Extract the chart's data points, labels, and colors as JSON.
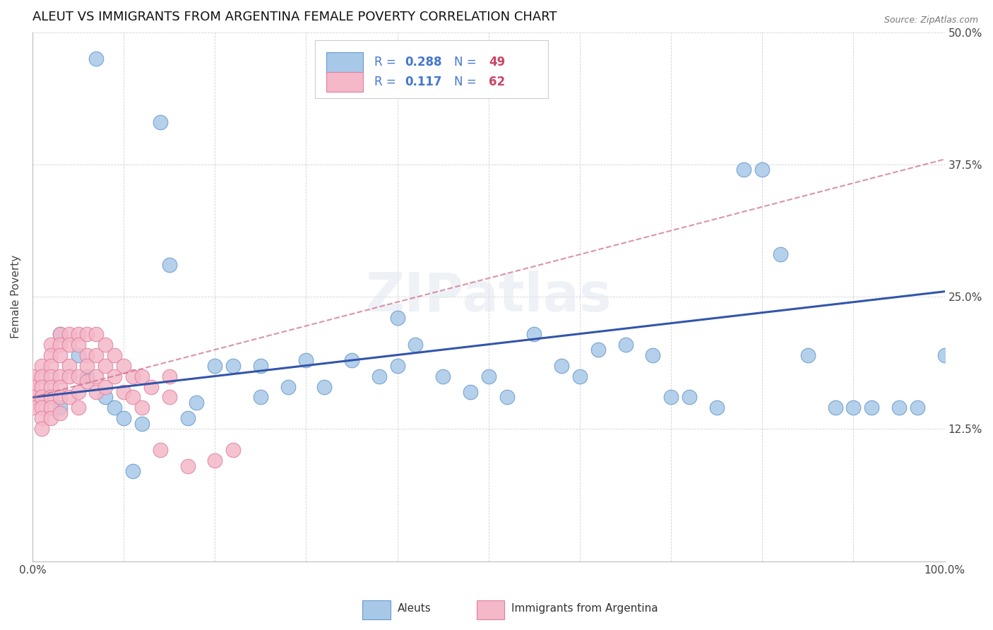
{
  "title": "ALEUT VS IMMIGRANTS FROM ARGENTINA FEMALE POVERTY CORRELATION CHART",
  "source": "Source: ZipAtlas.com",
  "ylabel": "Female Poverty",
  "xlim": [
    0,
    1.0
  ],
  "ylim": [
    0,
    0.5
  ],
  "ytick_positions": [
    0.0,
    0.125,
    0.25,
    0.375,
    0.5
  ],
  "yticklabels": [
    "",
    "12.5%",
    "25.0%",
    "37.5%",
    "50.0%"
  ],
  "blue_R": 0.288,
  "blue_N": 49,
  "pink_R": 0.117,
  "pink_N": 62,
  "blue_color": "#a8c8e8",
  "blue_edge": "#6699cc",
  "pink_color": "#f4b8c8",
  "pink_edge": "#e080a0",
  "blue_line_color": "#3355aa",
  "pink_line_color": "#cc6688",
  "R_color": "#4477cc",
  "N_color": "#cc4466",
  "watermark": "ZIPatlas",
  "blue_x": [
    0.07,
    0.14,
    0.03,
    0.05,
    0.06,
    0.08,
    0.09,
    0.1,
    0.11,
    0.12,
    0.15,
    0.18,
    0.2,
    0.22,
    0.25,
    0.28,
    0.3,
    0.32,
    0.35,
    0.38,
    0.4,
    0.42,
    0.45,
    0.48,
    0.5,
    0.52,
    0.55,
    0.58,
    0.6,
    0.62,
    0.65,
    0.68,
    0.7,
    0.72,
    0.75,
    0.78,
    0.8,
    0.82,
    0.85,
    0.88,
    0.9,
    0.92,
    0.95,
    0.97,
    1.0,
    0.03,
    0.17,
    0.25,
    0.4
  ],
  "blue_y": [
    0.475,
    0.415,
    0.215,
    0.195,
    0.175,
    0.155,
    0.145,
    0.135,
    0.085,
    0.13,
    0.28,
    0.15,
    0.185,
    0.185,
    0.185,
    0.165,
    0.19,
    0.165,
    0.19,
    0.175,
    0.185,
    0.205,
    0.175,
    0.16,
    0.175,
    0.155,
    0.215,
    0.185,
    0.175,
    0.2,
    0.205,
    0.195,
    0.155,
    0.155,
    0.145,
    0.37,
    0.37,
    0.29,
    0.195,
    0.145,
    0.145,
    0.145,
    0.145,
    0.145,
    0.195,
    0.145,
    0.135,
    0.155,
    0.23
  ],
  "pink_x": [
    0.0,
    0.0,
    0.0,
    0.0,
    0.01,
    0.01,
    0.01,
    0.01,
    0.01,
    0.01,
    0.01,
    0.02,
    0.02,
    0.02,
    0.02,
    0.02,
    0.02,
    0.02,
    0.02,
    0.03,
    0.03,
    0.03,
    0.03,
    0.03,
    0.03,
    0.03,
    0.04,
    0.04,
    0.04,
    0.04,
    0.04,
    0.05,
    0.05,
    0.05,
    0.05,
    0.05,
    0.06,
    0.06,
    0.06,
    0.06,
    0.07,
    0.07,
    0.07,
    0.07,
    0.08,
    0.08,
    0.08,
    0.09,
    0.09,
    0.1,
    0.1,
    0.11,
    0.11,
    0.12,
    0.12,
    0.13,
    0.14,
    0.15,
    0.15,
    0.17,
    0.2,
    0.22
  ],
  "pink_y": [
    0.175,
    0.165,
    0.155,
    0.145,
    0.185,
    0.175,
    0.165,
    0.155,
    0.145,
    0.135,
    0.125,
    0.205,
    0.195,
    0.185,
    0.175,
    0.165,
    0.155,
    0.145,
    0.135,
    0.215,
    0.205,
    0.195,
    0.175,
    0.165,
    0.155,
    0.14,
    0.215,
    0.205,
    0.185,
    0.175,
    0.155,
    0.215,
    0.205,
    0.175,
    0.16,
    0.145,
    0.215,
    0.195,
    0.185,
    0.17,
    0.215,
    0.195,
    0.175,
    0.16,
    0.205,
    0.185,
    0.165,
    0.195,
    0.175,
    0.185,
    0.16,
    0.175,
    0.155,
    0.175,
    0.145,
    0.165,
    0.105,
    0.175,
    0.155,
    0.09,
    0.095,
    0.105
  ],
  "blue_line_x": [
    0.0,
    1.0
  ],
  "blue_line_y": [
    0.155,
    0.255
  ],
  "pink_line_x": [
    0.0,
    1.0
  ],
  "pink_line_y": [
    0.155,
    0.38
  ]
}
